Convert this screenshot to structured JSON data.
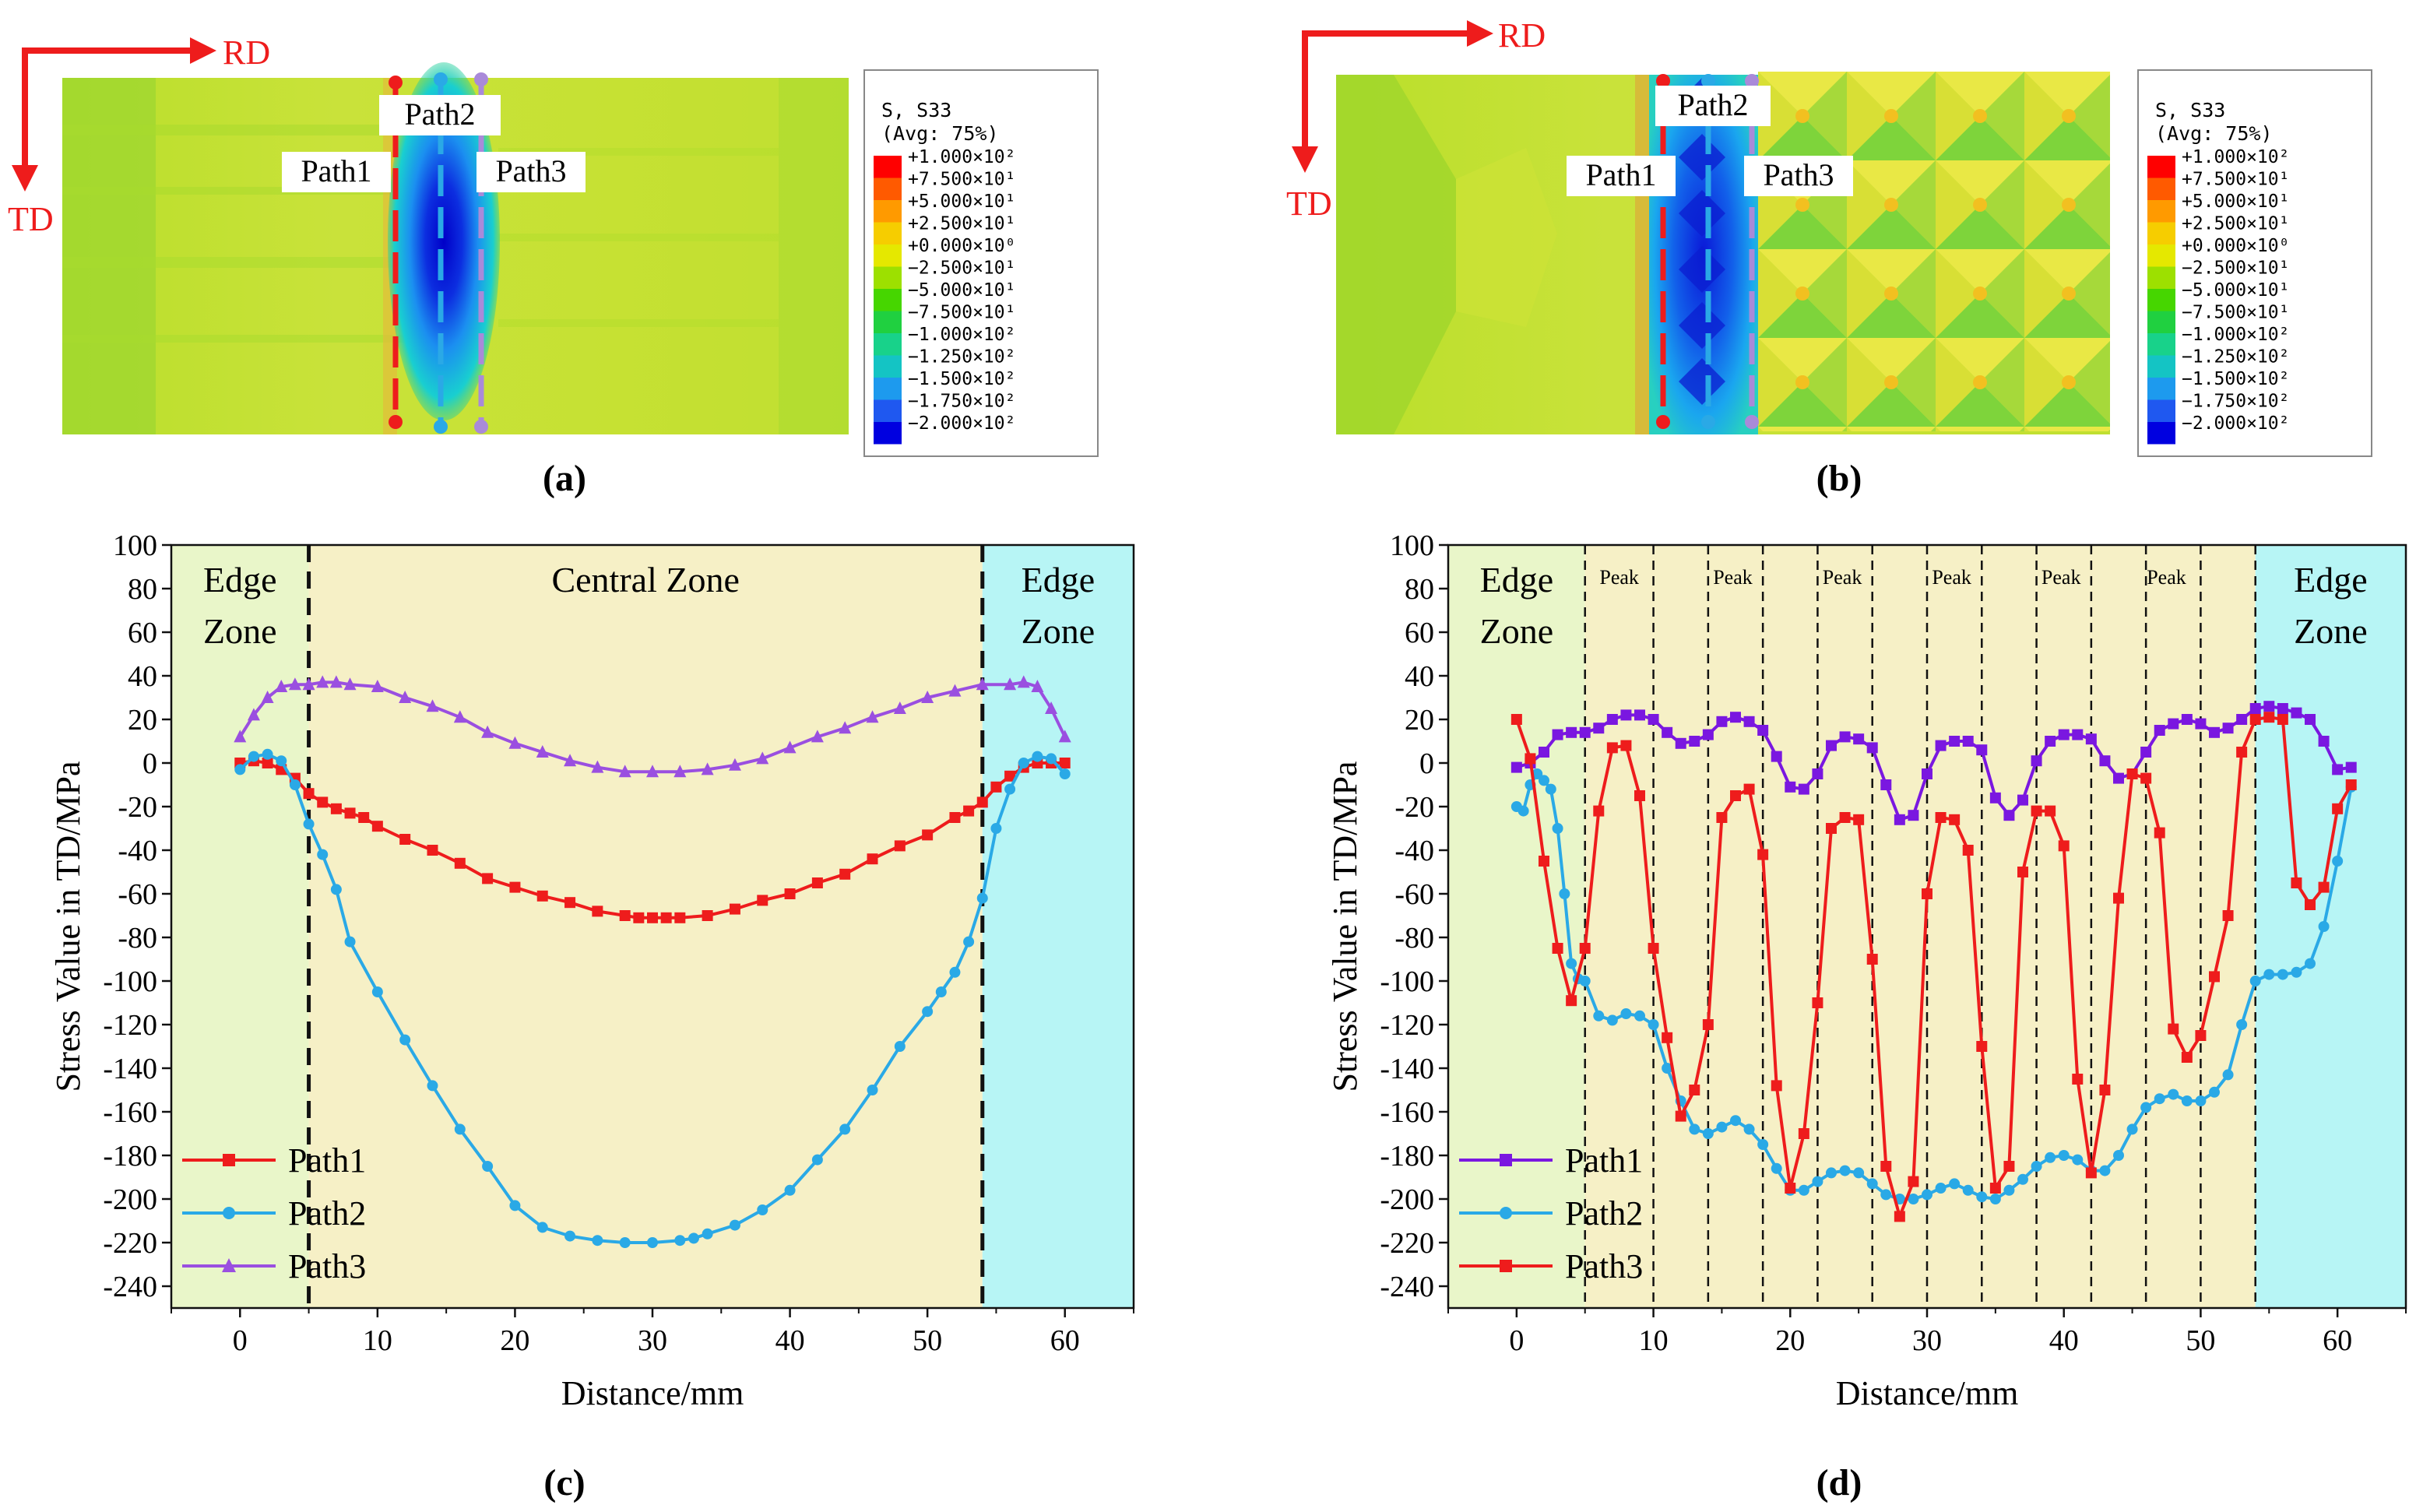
{
  "panels": {
    "a": {
      "label": "(a)"
    },
    "b": {
      "label": "(b)"
    },
    "c": {
      "label": "(c)"
    },
    "d": {
      "label": "(d)"
    }
  },
  "contour": {
    "axes": {
      "rd": "RD",
      "td": "TD"
    },
    "paths": [
      "Path1",
      "Path2",
      "Path3"
    ],
    "path_colors": [
      "#ee1c1c",
      "#2aa9e6",
      "#a98ad9"
    ],
    "legend": {
      "title": "S, S33",
      "avg": "(Avg: 75%)",
      "levels": [
        "+1.000×10²",
        "+7.500×10¹",
        "+5.000×10¹",
        "+2.500×10¹",
        "+0.000×10⁰",
        "−2.500×10¹",
        "−5.000×10¹",
        "−7.500×10¹",
        "−1.000×10²",
        "−1.250×10²",
        "−1.500×10²",
        "−1.750×10²",
        "−2.000×10²"
      ],
      "colors": [
        "#ff0000",
        "#ff5a00",
        "#ff9a00",
        "#f6cd00",
        "#e5e800",
        "#9de000",
        "#46d600",
        "#20d040",
        "#18d28a",
        "#14c4c4",
        "#1d9aee",
        "#1f58f0",
        "#0000e0"
      ]
    }
  },
  "chart_data": [
    {
      "type": "line",
      "panel": "c",
      "xlabel": "Distance/mm",
      "ylabel": "Stress Value in TD/MPa",
      "xlim": [
        -5,
        65
      ],
      "ylim": [
        -250,
        100
      ],
      "xticks": [
        0,
        10,
        20,
        30,
        40,
        50,
        60
      ],
      "yticks": [
        100,
        80,
        60,
        40,
        20,
        0,
        -20,
        -40,
        -60,
        -80,
        -100,
        -120,
        -140,
        -160,
        -180,
        -200,
        -220,
        -240
      ],
      "zones": [
        {
          "label": "Edge\nZone",
          "from": -5,
          "to": 5,
          "color": "#e9f6c9"
        },
        {
          "label": "Central Zone",
          "from": 5,
          "to": 54,
          "color": "#f6f0c6"
        },
        {
          "label": "Edge\nZone",
          "from": 54,
          "to": 65,
          "color": "#b7f5f5"
        }
      ],
      "dividers": [
        5,
        54
      ],
      "legend": "bottom-left",
      "series": [
        {
          "name": "Path1",
          "color": "#ee1c1c",
          "marker": "square",
          "x": [
            0,
            1,
            2,
            3,
            4,
            5,
            6,
            7,
            8,
            9,
            10,
            12,
            14,
            16,
            18,
            20,
            22,
            24,
            26,
            28,
            29,
            30,
            31,
            32,
            34,
            36,
            38,
            40,
            42,
            44,
            46,
            48,
            50,
            52,
            53,
            54,
            55,
            56,
            57,
            58,
            59,
            60
          ],
          "y": [
            0,
            1,
            0,
            -3,
            -7,
            -14,
            -18,
            -21,
            -23,
            -25,
            -29,
            -35,
            -40,
            -46,
            -53,
            -57,
            -61,
            -64,
            -68,
            -70,
            -71,
            -71,
            -71,
            -71,
            -70,
            -67,
            -63,
            -60,
            -55,
            -51,
            -44,
            -38,
            -33,
            -25,
            -22,
            -18,
            -11,
            -6,
            -2,
            0,
            0,
            0
          ]
        },
        {
          "name": "Path2",
          "color": "#2aa9e6",
          "marker": "circle",
          "x": [
            0,
            1,
            2,
            3,
            4,
            5,
            6,
            7,
            8,
            10,
            12,
            14,
            16,
            18,
            20,
            22,
            24,
            26,
            28,
            30,
            32,
            33,
            34,
            36,
            38,
            40,
            42,
            44,
            46,
            48,
            50,
            51,
            52,
            53,
            54,
            55,
            56,
            57,
            58,
            59,
            60
          ],
          "y": [
            -3,
            3,
            4,
            1,
            -10,
            -28,
            -42,
            -58,
            -82,
            -105,
            -127,
            -148,
            -168,
            -185,
            -203,
            -213,
            -217,
            -219,
            -220,
            -220,
            -219,
            -218,
            -216,
            -212,
            -205,
            -196,
            -182,
            -168,
            -150,
            -130,
            -114,
            -105,
            -96,
            -82,
            -62,
            -30,
            -12,
            0,
            3,
            2,
            -5
          ]
        },
        {
          "name": "Path3",
          "color": "#9a4fe0",
          "marker": "triangle",
          "x": [
            0,
            1,
            2,
            3,
            4,
            5,
            6,
            7,
            8,
            10,
            12,
            14,
            16,
            18,
            20,
            22,
            24,
            26,
            28,
            30,
            32,
            34,
            36,
            38,
            40,
            42,
            44,
            46,
            48,
            50,
            52,
            54,
            56,
            57,
            58,
            59,
            60
          ],
          "y": [
            12,
            22,
            30,
            35,
            36,
            36,
            37,
            37,
            36,
            35,
            30,
            26,
            21,
            14,
            9,
            5,
            1,
            -2,
            -4,
            -4,
            -4,
            -3,
            -1,
            2,
            7,
            12,
            16,
            21,
            25,
            30,
            33,
            36,
            36,
            37,
            35,
            25,
            12
          ]
        }
      ]
    },
    {
      "type": "line",
      "panel": "d",
      "xlabel": "Distance/mm",
      "ylabel": "Stress Value in TD/MPa",
      "xlim": [
        -5,
        65
      ],
      "ylim": [
        -250,
        100
      ],
      "xticks": [
        0,
        10,
        20,
        30,
        40,
        50,
        60
      ],
      "yticks": [
        100,
        80,
        60,
        40,
        20,
        0,
        -20,
        -40,
        -60,
        -80,
        -100,
        -120,
        -140,
        -160,
        -180,
        -200,
        -220,
        -240
      ],
      "zones": [
        {
          "label": "Edge\nZone",
          "from": -5,
          "to": 5,
          "color": "#e9f6c9"
        },
        {
          "label": "",
          "from": 5,
          "to": 54,
          "color": "#f6f0c6"
        },
        {
          "label": "Edge\nZone",
          "from": 54,
          "to": 65,
          "color": "#b7f5f5"
        }
      ],
      "dividers": [
        5,
        10,
        14,
        18,
        22,
        26,
        30,
        34,
        38,
        42,
        46,
        50,
        54
      ],
      "peak_labels": {
        "text": "Peak",
        "x": [
          7.5,
          15.8,
          23.8,
          31.8,
          39.8,
          47.5
        ]
      },
      "legend": "bottom-left",
      "series": [
        {
          "name": "Path1",
          "color": "#7a17e0",
          "marker": "square",
          "x": [
            0,
            1,
            2,
            3,
            4,
            5,
            6,
            7,
            8,
            9,
            10,
            11,
            12,
            13,
            14,
            15,
            16,
            17,
            18,
            19,
            20,
            21,
            22,
            23,
            24,
            25,
            26,
            27,
            28,
            29,
            30,
            31,
            32,
            33,
            34,
            35,
            36,
            37,
            38,
            39,
            40,
            41,
            42,
            43,
            44,
            45,
            46,
            47,
            48,
            49,
            50,
            51,
            52,
            53,
            54,
            55,
            56,
            57,
            58,
            59,
            60,
            61
          ],
          "y": [
            -2,
            0,
            5,
            13,
            14,
            14,
            16,
            20,
            22,
            22,
            20,
            14,
            9,
            10,
            13,
            19,
            21,
            19,
            15,
            3,
            -11,
            -12,
            -5,
            8,
            12,
            11,
            7,
            -10,
            -26,
            -24,
            -5,
            8,
            10,
            10,
            6,
            -16,
            -24,
            -17,
            1,
            10,
            13,
            13,
            11,
            1,
            -7,
            -5,
            5,
            15,
            18,
            20,
            18,
            14,
            16,
            20,
            25,
            26,
            25,
            23,
            20,
            10,
            -3,
            -2
          ]
        },
        {
          "name": "Path2",
          "color": "#2aa9e6",
          "marker": "circle",
          "x": [
            0,
            0.5,
            1,
            1.5,
            2,
            2.5,
            3,
            3.5,
            4,
            4.5,
            5,
            6,
            7,
            8,
            9,
            10,
            11,
            12,
            13,
            14,
            15,
            16,
            17,
            18,
            19,
            20,
            21,
            22,
            23,
            24,
            25,
            26,
            27,
            28,
            29,
            30,
            31,
            32,
            33,
            34,
            35,
            36,
            37,
            38,
            39,
            40,
            41,
            42,
            43,
            44,
            45,
            46,
            47,
            48,
            49,
            50,
            51,
            52,
            53,
            54,
            55,
            56,
            57,
            58,
            59,
            60,
            61
          ],
          "y": [
            -20,
            -22,
            -10,
            -5,
            -8,
            -12,
            -30,
            -60,
            -92,
            -99,
            -100,
            -116,
            -118,
            -115,
            -116,
            -120,
            -140,
            -155,
            -168,
            -170,
            -167,
            -164,
            -168,
            -175,
            -186,
            -196,
            -196,
            -192,
            -188,
            -187,
            -188,
            -193,
            -198,
            -200,
            -200,
            -198,
            -195,
            -193,
            -196,
            -199,
            -200,
            -196,
            -191,
            -185,
            -181,
            -180,
            -182,
            -187,
            -187,
            -180,
            -168,
            -158,
            -154,
            -152,
            -155,
            -155,
            -151,
            -143,
            -120,
            -100,
            -97,
            -97,
            -96,
            -92,
            -75,
            -45,
            -11
          ]
        },
        {
          "name": "Path3",
          "color": "#ee1c1c",
          "marker": "square",
          "x": [
            0,
            1,
            2,
            3,
            4,
            5,
            6,
            7,
            8,
            9,
            10,
            11,
            12,
            13,
            14,
            15,
            16,
            17,
            18,
            19,
            20,
            21,
            22,
            23,
            24,
            25,
            26,
            27,
            28,
            29,
            30,
            31,
            32,
            33,
            34,
            35,
            36,
            37,
            38,
            39,
            40,
            41,
            42,
            43,
            44,
            45,
            46,
            47,
            48,
            49,
            50,
            51,
            52,
            53,
            54,
            55,
            56,
            57,
            58,
            59,
            60,
            61
          ],
          "y": [
            20,
            2,
            -45,
            -85,
            -109,
            -85,
            -22,
            7,
            8,
            -15,
            -85,
            -126,
            -162,
            -150,
            -120,
            -25,
            -15,
            -12,
            -42,
            -148,
            -195,
            -170,
            -110,
            -30,
            -25,
            -26,
            -90,
            -185,
            -208,
            -192,
            -60,
            -25,
            -26,
            -40,
            -130,
            -195,
            -185,
            -50,
            -22,
            -22,
            -38,
            -145,
            -188,
            -150,
            -62,
            -5,
            -7,
            -32,
            -122,
            -135,
            -125,
            -98,
            -70,
            5,
            20,
            21,
            20,
            -55,
            -65,
            -57,
            -21,
            -10
          ]
        }
      ]
    }
  ]
}
